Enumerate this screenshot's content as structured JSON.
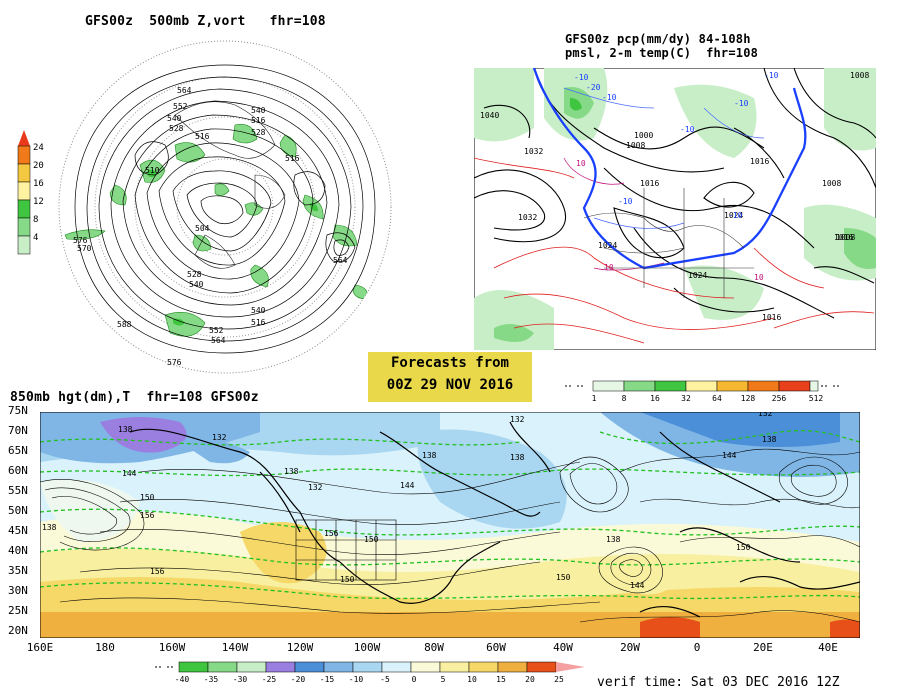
{
  "panels": {
    "polar": {
      "title": "GFS00z  500mb Z,vort   fhr=108",
      "colorbar_ticks": [
        "24",
        "20",
        "16",
        "12",
        "8",
        "4"
      ],
      "contour_labels": [
        "564",
        "552",
        "540",
        "528",
        "516",
        "510",
        "516",
        "528",
        "516",
        "540",
        "576",
        "564",
        "504",
        "528",
        "540",
        "516",
        "540",
        "552",
        "564",
        "576",
        "588",
        "570"
      ]
    },
    "na": {
      "title_line1": "GFS00z pcp(mm/dy) 84-108h",
      "title_line2": "pmsl, 2-m temp(C)  fhr=108",
      "pressure_labels": [
        "1040",
        "1032",
        "1032",
        "1024",
        "1016",
        "1008",
        "1000",
        "1016",
        "1024",
        "1008",
        "1016",
        "1008",
        "1024",
        "1016",
        "1008"
      ],
      "temp_labels": [
        "-10",
        "-20",
        "-10",
        "-10",
        "-10",
        "10",
        "-10",
        "-10",
        "10",
        "10",
        "-10"
      ]
    },
    "bottom": {
      "title": "850mb hgt(dm),T  fhr=108 GFS00z",
      "verif_time": "verif time: Sat 03 DEC 2016 12Z",
      "lat_labels": [
        "75N",
        "70N",
        "65N",
        "60N",
        "55N",
        "50N",
        "45N",
        "40N",
        "35N",
        "30N",
        "25N",
        "20N"
      ],
      "lon_labels": [
        "160E",
        "180",
        "160W",
        "140W",
        "120W",
        "100W",
        "80W",
        "60W",
        "40W",
        "20W",
        "0",
        "20E",
        "40E"
      ],
      "contour_labels": [
        "138",
        "132",
        "138",
        "144",
        "150",
        "156",
        "138",
        "132",
        "144",
        "138",
        "156",
        "150",
        "150",
        "156",
        "138",
        "132",
        "144",
        "138",
        "150",
        "144",
        "132",
        "150",
        "138"
      ],
      "temp_colorbar_ticks": [
        "-40",
        "-35",
        "-30",
        "-25",
        "-20",
        "-15",
        "-10",
        "-5",
        "0",
        "5",
        "10",
        "15",
        "20",
        "25"
      ]
    }
  },
  "forecast_banner": {
    "line1": "Forecasts from",
    "line2": "00Z 29 NOV 2016"
  },
  "precip_colorbar_ticks": [
    "1",
    "8",
    "16",
    "32",
    "64",
    "128",
    "256",
    "512"
  ]
}
